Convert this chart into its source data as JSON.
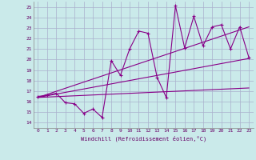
{
  "xlabel": "Windchill (Refroidissement éolien,°C)",
  "background_color": "#caeaea",
  "grid_color": "#aab0cc",
  "line_color": "#880088",
  "xlim": [
    -0.5,
    23.5
  ],
  "ylim": [
    13.5,
    25.5
  ],
  "xticks": [
    0,
    1,
    2,
    3,
    4,
    5,
    6,
    7,
    8,
    9,
    10,
    11,
    12,
    13,
    14,
    15,
    16,
    17,
    18,
    19,
    20,
    21,
    22,
    23
  ],
  "yticks": [
    14,
    15,
    16,
    17,
    18,
    19,
    20,
    21,
    22,
    23,
    24,
    25
  ],
  "jagged_x": [
    0,
    1,
    2,
    3,
    4,
    5,
    6,
    7,
    8,
    9,
    10,
    11,
    12,
    13,
    14,
    15,
    16,
    17,
    18,
    19,
    20,
    21,
    22,
    23
  ],
  "jagged_y": [
    16.5,
    16.6,
    16.8,
    15.9,
    15.8,
    14.9,
    15.3,
    14.5,
    19.9,
    18.5,
    21.0,
    22.7,
    22.5,
    18.3,
    16.4,
    25.1,
    21.1,
    24.1,
    21.3,
    23.1,
    23.3,
    21.0,
    23.1,
    20.2
  ],
  "trend1_x": [
    0,
    23
  ],
  "trend1_y": [
    16.4,
    20.1
  ],
  "trend2_x": [
    0,
    23
  ],
  "trend2_y": [
    16.4,
    23.1
  ],
  "trend3_x": [
    0,
    23
  ],
  "trend3_y": [
    16.4,
    17.3
  ]
}
